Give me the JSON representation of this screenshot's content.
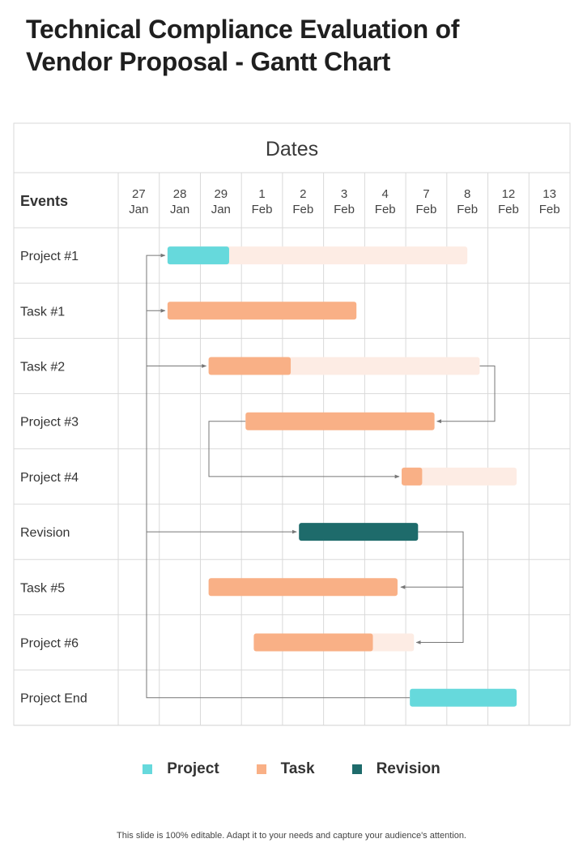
{
  "title_line1": "Technical Compliance Evaluation of",
  "title_line2": "Vendor Proposal - Gantt Chart",
  "footer": "This slide is 100% editable. Adapt it to your needs and capture your audience's attention.",
  "colors": {
    "project": "#66d9dc",
    "task": "#f9b086",
    "revision": "#1e6b6b",
    "track": "#fdece4",
    "grid": "#d9d9d9",
    "arrow": "#777777"
  },
  "chart_data": {
    "type": "gantt",
    "header": "Dates",
    "row_header": "Events",
    "dates": [
      {
        "d": "27",
        "m": "Jan"
      },
      {
        "d": "28",
        "m": "Jan"
      },
      {
        "d": "29",
        "m": "Jan"
      },
      {
        "d": "1",
        "m": "Feb"
      },
      {
        "d": "2",
        "m": "Feb"
      },
      {
        "d": "3",
        "m": "Feb"
      },
      {
        "d": "4",
        "m": "Feb"
      },
      {
        "d": "7",
        "m": "Feb"
      },
      {
        "d": "8",
        "m": "Feb"
      },
      {
        "d": "12",
        "m": "Feb"
      },
      {
        "d": "13",
        "m": "Feb"
      }
    ],
    "rows": [
      {
        "label": "Project #1",
        "kind": "project",
        "start": 1.2,
        "done": 2.7,
        "end": 8.5
      },
      {
        "label": "Task #1",
        "kind": "task",
        "start": 1.2,
        "done": 5.8,
        "end": 5.8
      },
      {
        "label": "Task #2",
        "kind": "task",
        "start": 2.2,
        "done": 4.2,
        "end": 8.8
      },
      {
        "label": "Project #3",
        "kind": "task",
        "start": 3.1,
        "done": 7.7,
        "end": 7.7
      },
      {
        "label": "Project #4",
        "kind": "task",
        "start": 6.9,
        "done": 7.4,
        "end": 9.7
      },
      {
        "label": "Revision",
        "kind": "revision",
        "start": 4.4,
        "done": 7.3,
        "end": 7.3
      },
      {
        "label": "Task #5",
        "kind": "task",
        "start": 2.2,
        "done": 6.8,
        "end": 6.8
      },
      {
        "label": "Project #6",
        "kind": "task",
        "start": 3.3,
        "done": 6.2,
        "end": 7.2
      },
      {
        "label": "Project End",
        "kind": "project",
        "start": 7.1,
        "done": 9.7,
        "end": 9.7
      }
    ],
    "links": [
      {
        "from": 8,
        "to": 0
      },
      {
        "from": 8,
        "to": 1
      },
      {
        "from": 8,
        "to": 2
      },
      {
        "from": 8,
        "to": 5
      },
      {
        "from": 2,
        "to": 3
      },
      {
        "from": 3,
        "to": 4
      },
      {
        "from": 5,
        "to": 6
      },
      {
        "from": 5,
        "to": 7
      }
    ],
    "legend": [
      {
        "label": "Project",
        "kind": "project"
      },
      {
        "label": "Task",
        "kind": "task"
      },
      {
        "label": "Revision",
        "kind": "revision"
      }
    ]
  }
}
